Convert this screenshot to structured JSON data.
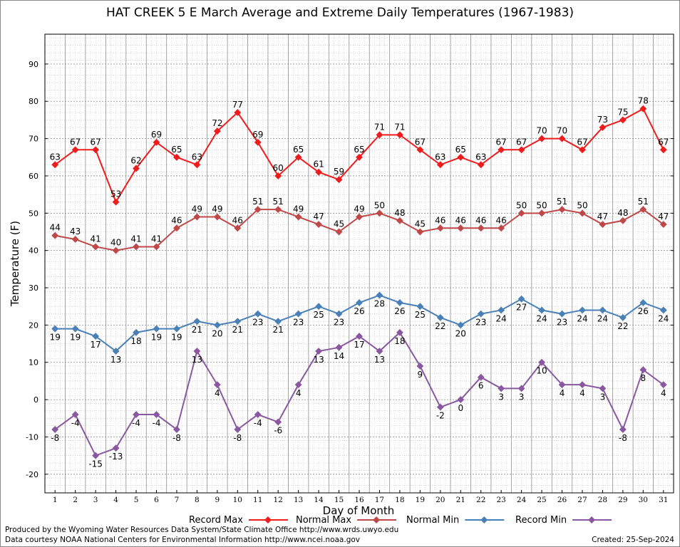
{
  "chart_data": {
    "type": "line",
    "title": "HAT CREEK 5 E March Average and Extreme Daily Temperatures (1967-1983)",
    "xlabel": "Day of Month",
    "ylabel": "Temperature (F)",
    "xlim": [
      0.5,
      31.5
    ],
    "ylim": [
      -25,
      98
    ],
    "yticks": [
      -20,
      -10,
      0,
      10,
      20,
      30,
      40,
      50,
      60,
      70,
      80,
      90
    ],
    "x": [
      1,
      2,
      3,
      4,
      5,
      6,
      7,
      8,
      9,
      10,
      11,
      12,
      13,
      14,
      15,
      16,
      17,
      18,
      19,
      20,
      21,
      22,
      23,
      24,
      25,
      26,
      27,
      28,
      29,
      30,
      31
    ],
    "grid": true,
    "legend_position": "bottom",
    "series": [
      {
        "name": "Record Max",
        "color": "#ee1c1c",
        "values": [
          63,
          67,
          67,
          53,
          62,
          69,
          65,
          63,
          72,
          77,
          69,
          60,
          65,
          61,
          59,
          65,
          71,
          71,
          67,
          63,
          65,
          63,
          67,
          67,
          70,
          70,
          67,
          73,
          75,
          78,
          67
        ]
      },
      {
        "name": "Normal Max",
        "color": "#c04848",
        "values": [
          44,
          43,
          41,
          40,
          41,
          41,
          46,
          49,
          49,
          46,
          51,
          51,
          49,
          47,
          45,
          49,
          50,
          48,
          45,
          46,
          46,
          46,
          46,
          50,
          50,
          51,
          50,
          47,
          48,
          51,
          47
        ]
      },
      {
        "name": "Normal Min",
        "color": "#4a80b8",
        "values": [
          19,
          19,
          17,
          13,
          18,
          19,
          19,
          21,
          20,
          21,
          23,
          21,
          23,
          25,
          23,
          26,
          28,
          26,
          25,
          22,
          20,
          23,
          24,
          27,
          24,
          23,
          24,
          24,
          22,
          26,
          24
        ]
      },
      {
        "name": "Record Min",
        "color": "#8a58a0",
        "values": [
          -8,
          -4,
          -15,
          -13,
          -4,
          -4,
          -8,
          13,
          4,
          -8,
          -4,
          -6,
          4,
          13,
          14,
          17,
          13,
          18,
          9,
          -2,
          0,
          6,
          3,
          3,
          10,
          4,
          4,
          3,
          -8,
          8,
          4
        ]
      }
    ]
  },
  "footer": {
    "credit_line_1": "Produced by the Wyoming Water Resources Data System/State Climate Office http://www.wrds.uwyo.edu",
    "credit_line_2": "Data courtesy NOAA National Centers for Environmental Information http://www.ncei.noaa.gov",
    "created": "Created:  25-Sep-2024"
  }
}
